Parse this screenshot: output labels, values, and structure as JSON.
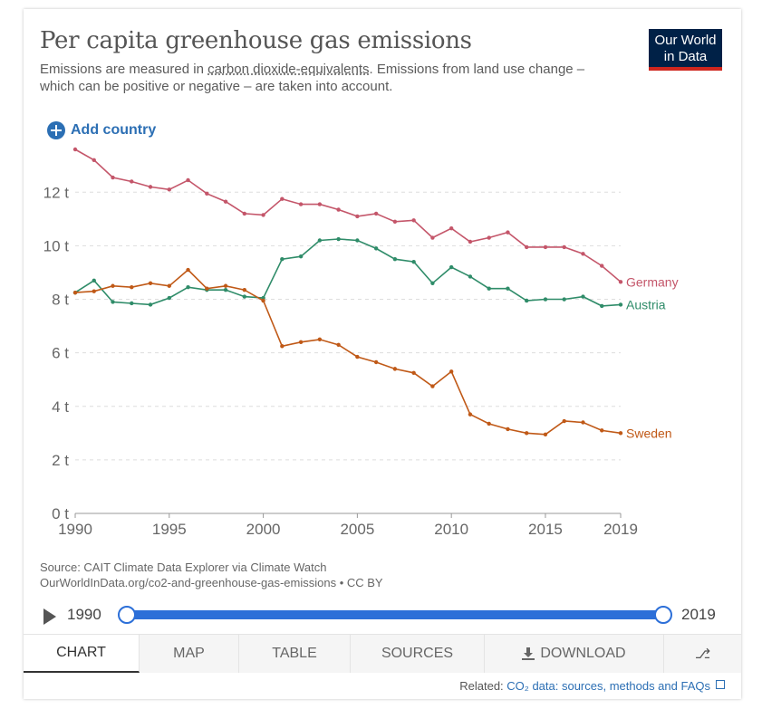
{
  "header": {
    "title": "Per capita greenhouse gas emissions",
    "subtitle_pre": "Emissions are measured in ",
    "subtitle_link": "carbon dioxide-equivalents",
    "subtitle_post": ". Emissions from land use change – which can be positive or negative – are taken into account.",
    "logo_line1": "Our World",
    "logo_line2": "in Data"
  },
  "controls": {
    "add_country": "Add country"
  },
  "source": {
    "line1": "Source: CAIT Climate Data Explorer via Climate Watch",
    "line2": "OurWorldInData.org/co2-and-greenhouse-gas-emissions • CC BY"
  },
  "timeline": {
    "start": "1990",
    "end": "2019"
  },
  "tabs": [
    "CHART",
    "MAP",
    "TABLE",
    "SOURCES",
    "DOWNLOAD"
  ],
  "related": {
    "prefix": "Related: ",
    "link": "CO₂ data: sources, methods and FAQs"
  },
  "colors": {
    "germany": "#c4566a",
    "austria": "#2f8c69",
    "sweden": "#c05917",
    "accent": "#2c6fb4"
  },
  "chart_data": {
    "type": "line",
    "x": [
      1990,
      1991,
      1992,
      1993,
      1994,
      1995,
      1996,
      1997,
      1998,
      1999,
      2000,
      2001,
      2002,
      2003,
      2004,
      2005,
      2006,
      2007,
      2008,
      2009,
      2010,
      2011,
      2012,
      2013,
      2014,
      2015,
      2016,
      2017,
      2018,
      2019
    ],
    "ylim": [
      0,
      13.6
    ],
    "yticks": [
      0,
      2,
      4,
      6,
      8,
      10,
      12
    ],
    "ytick_labels": [
      "0 t",
      "2 t",
      "4 t",
      "6 t",
      "8 t",
      "10 t",
      "12 t"
    ],
    "xticks": [
      1990,
      1995,
      2000,
      2005,
      2010,
      2015,
      2019
    ],
    "xtick_labels": [
      "1990",
      "1995",
      "2000",
      "2005",
      "2010",
      "2015",
      "2019"
    ],
    "grid": true,
    "series": [
      {
        "name": "Germany",
        "color": "#c4566a",
        "values": [
          13.6,
          13.2,
          12.55,
          12.4,
          12.2,
          12.1,
          12.45,
          11.95,
          11.65,
          11.2,
          11.15,
          11.75,
          11.55,
          11.55,
          11.35,
          11.1,
          11.2,
          10.9,
          10.95,
          10.3,
          10.65,
          10.15,
          10.3,
          10.5,
          9.95,
          9.95,
          9.95,
          9.7,
          9.25,
          8.65
        ]
      },
      {
        "name": "Austria",
        "color": "#2f8c69",
        "values": [
          8.25,
          8.7,
          7.9,
          7.85,
          7.8,
          8.05,
          8.45,
          8.35,
          8.35,
          8.1,
          8.05,
          9.5,
          9.6,
          10.2,
          10.25,
          10.2,
          9.9,
          9.5,
          9.4,
          8.6,
          9.2,
          8.85,
          8.4,
          8.4,
          7.95,
          8.0,
          8.0,
          8.1,
          7.75,
          7.8
        ]
      },
      {
        "name": "Sweden",
        "color": "#c05917",
        "values": [
          8.25,
          8.3,
          8.5,
          8.45,
          8.6,
          8.5,
          9.1,
          8.4,
          8.5,
          8.35,
          7.95,
          6.25,
          6.4,
          6.5,
          6.3,
          5.85,
          5.65,
          5.4,
          5.25,
          4.75,
          5.3,
          3.7,
          3.35,
          3.15,
          3.0,
          2.95,
          3.45,
          3.4,
          3.1,
          3.0
        ]
      }
    ]
  }
}
